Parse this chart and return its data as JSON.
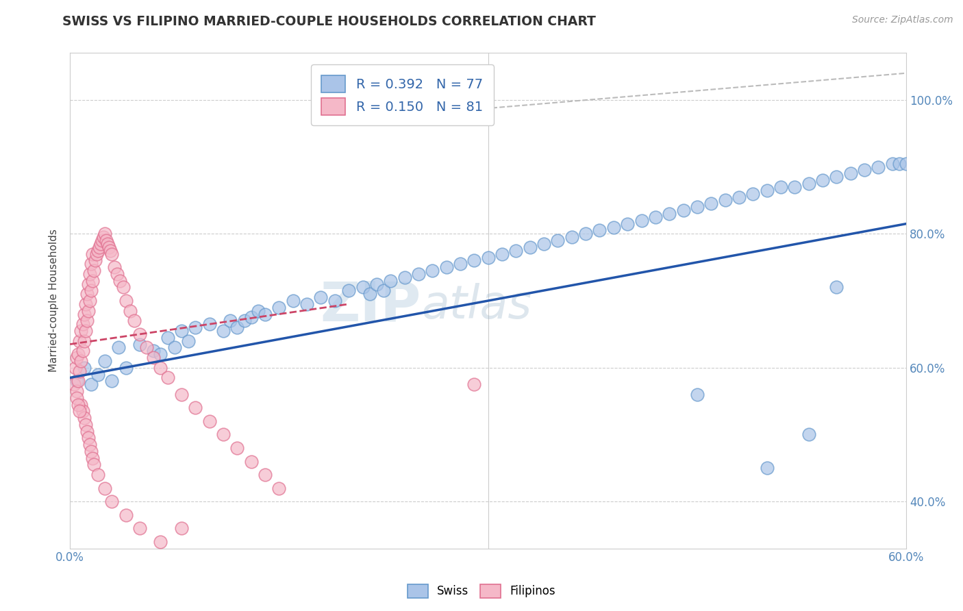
{
  "title": "SWISS VS FILIPINO MARRIED-COUPLE HOUSEHOLDS CORRELATION CHART",
  "source": "Source: ZipAtlas.com",
  "xlim": [
    0.0,
    0.6
  ],
  "ylim": [
    0.33,
    1.07
  ],
  "swiss_color": "#aac4e8",
  "swiss_edge_color": "#6699cc",
  "filipino_color": "#f5b8c8",
  "filipino_edge_color": "#e07090",
  "swiss_line_color": "#2255aa",
  "filipino_line_color": "#cc4466",
  "gray_line_color": "#bbbbbb",
  "watermark_color": "#c5d8ec",
  "swiss_x": [
    0.005,
    0.01,
    0.015,
    0.02,
    0.025,
    0.03,
    0.035,
    0.04,
    0.05,
    0.06,
    0.065,
    0.07,
    0.075,
    0.08,
    0.085,
    0.09,
    0.1,
    0.11,
    0.115,
    0.12,
    0.125,
    0.13,
    0.135,
    0.14,
    0.15,
    0.16,
    0.17,
    0.18,
    0.19,
    0.2,
    0.21,
    0.215,
    0.22,
    0.225,
    0.23,
    0.24,
    0.25,
    0.26,
    0.27,
    0.28,
    0.29,
    0.3,
    0.31,
    0.32,
    0.33,
    0.34,
    0.35,
    0.36,
    0.37,
    0.38,
    0.39,
    0.4,
    0.41,
    0.42,
    0.43,
    0.44,
    0.45,
    0.46,
    0.47,
    0.48,
    0.49,
    0.5,
    0.51,
    0.52,
    0.53,
    0.54,
    0.55,
    0.56,
    0.57,
    0.58,
    0.59,
    0.595,
    0.6,
    0.55,
    0.53,
    0.5,
    0.45
  ],
  "swiss_y": [
    0.58,
    0.6,
    0.575,
    0.59,
    0.61,
    0.58,
    0.63,
    0.6,
    0.635,
    0.625,
    0.62,
    0.645,
    0.63,
    0.655,
    0.64,
    0.66,
    0.665,
    0.655,
    0.67,
    0.66,
    0.67,
    0.675,
    0.685,
    0.68,
    0.69,
    0.7,
    0.695,
    0.705,
    0.7,
    0.715,
    0.72,
    0.71,
    0.725,
    0.715,
    0.73,
    0.735,
    0.74,
    0.745,
    0.75,
    0.755,
    0.76,
    0.765,
    0.77,
    0.775,
    0.78,
    0.785,
    0.79,
    0.795,
    0.8,
    0.805,
    0.81,
    0.815,
    0.82,
    0.825,
    0.83,
    0.835,
    0.84,
    0.845,
    0.85,
    0.855,
    0.86,
    0.865,
    0.87,
    0.87,
    0.875,
    0.88,
    0.885,
    0.89,
    0.895,
    0.9,
    0.905,
    0.905,
    0.905,
    0.72,
    0.5,
    0.45,
    0.56
  ],
  "filipino_x": [
    0.003,
    0.004,
    0.005,
    0.005,
    0.006,
    0.006,
    0.007,
    0.007,
    0.008,
    0.008,
    0.009,
    0.009,
    0.01,
    0.01,
    0.011,
    0.011,
    0.012,
    0.012,
    0.013,
    0.013,
    0.014,
    0.014,
    0.015,
    0.015,
    0.016,
    0.016,
    0.017,
    0.018,
    0.019,
    0.02,
    0.021,
    0.022,
    0.023,
    0.024,
    0.025,
    0.026,
    0.027,
    0.028,
    0.029,
    0.03,
    0.032,
    0.034,
    0.036,
    0.038,
    0.04,
    0.043,
    0.046,
    0.05,
    0.055,
    0.06,
    0.065,
    0.07,
    0.08,
    0.09,
    0.1,
    0.11,
    0.12,
    0.13,
    0.14,
    0.15,
    0.008,
    0.009,
    0.01,
    0.011,
    0.012,
    0.013,
    0.014,
    0.005,
    0.006,
    0.007,
    0.015,
    0.016,
    0.017,
    0.02,
    0.025,
    0.03,
    0.04,
    0.05,
    0.065,
    0.08,
    0.29
  ],
  "filipino_y": [
    0.575,
    0.6,
    0.565,
    0.615,
    0.58,
    0.62,
    0.595,
    0.64,
    0.61,
    0.655,
    0.625,
    0.665,
    0.64,
    0.68,
    0.655,
    0.695,
    0.67,
    0.71,
    0.685,
    0.725,
    0.7,
    0.74,
    0.715,
    0.755,
    0.73,
    0.77,
    0.745,
    0.76,
    0.77,
    0.775,
    0.78,
    0.785,
    0.79,
    0.795,
    0.8,
    0.79,
    0.785,
    0.78,
    0.775,
    0.77,
    0.75,
    0.74,
    0.73,
    0.72,
    0.7,
    0.685,
    0.67,
    0.65,
    0.63,
    0.615,
    0.6,
    0.585,
    0.56,
    0.54,
    0.52,
    0.5,
    0.48,
    0.46,
    0.44,
    0.42,
    0.545,
    0.535,
    0.525,
    0.515,
    0.505,
    0.495,
    0.485,
    0.555,
    0.545,
    0.535,
    0.475,
    0.465,
    0.455,
    0.44,
    0.42,
    0.4,
    0.38,
    0.36,
    0.34,
    0.36,
    0.575
  ],
  "swiss_line_x0": 0.0,
  "swiss_line_y0": 0.585,
  "swiss_line_x1": 0.6,
  "swiss_line_y1": 0.815,
  "filipino_line_x0": 0.0,
  "filipino_line_y0": 0.635,
  "filipino_line_x1": 0.2,
  "filipino_line_y1": 0.695,
  "gray_line_x0": 0.2,
  "gray_line_y0": 0.97,
  "gray_line_x1": 0.6,
  "gray_line_y1": 1.04
}
